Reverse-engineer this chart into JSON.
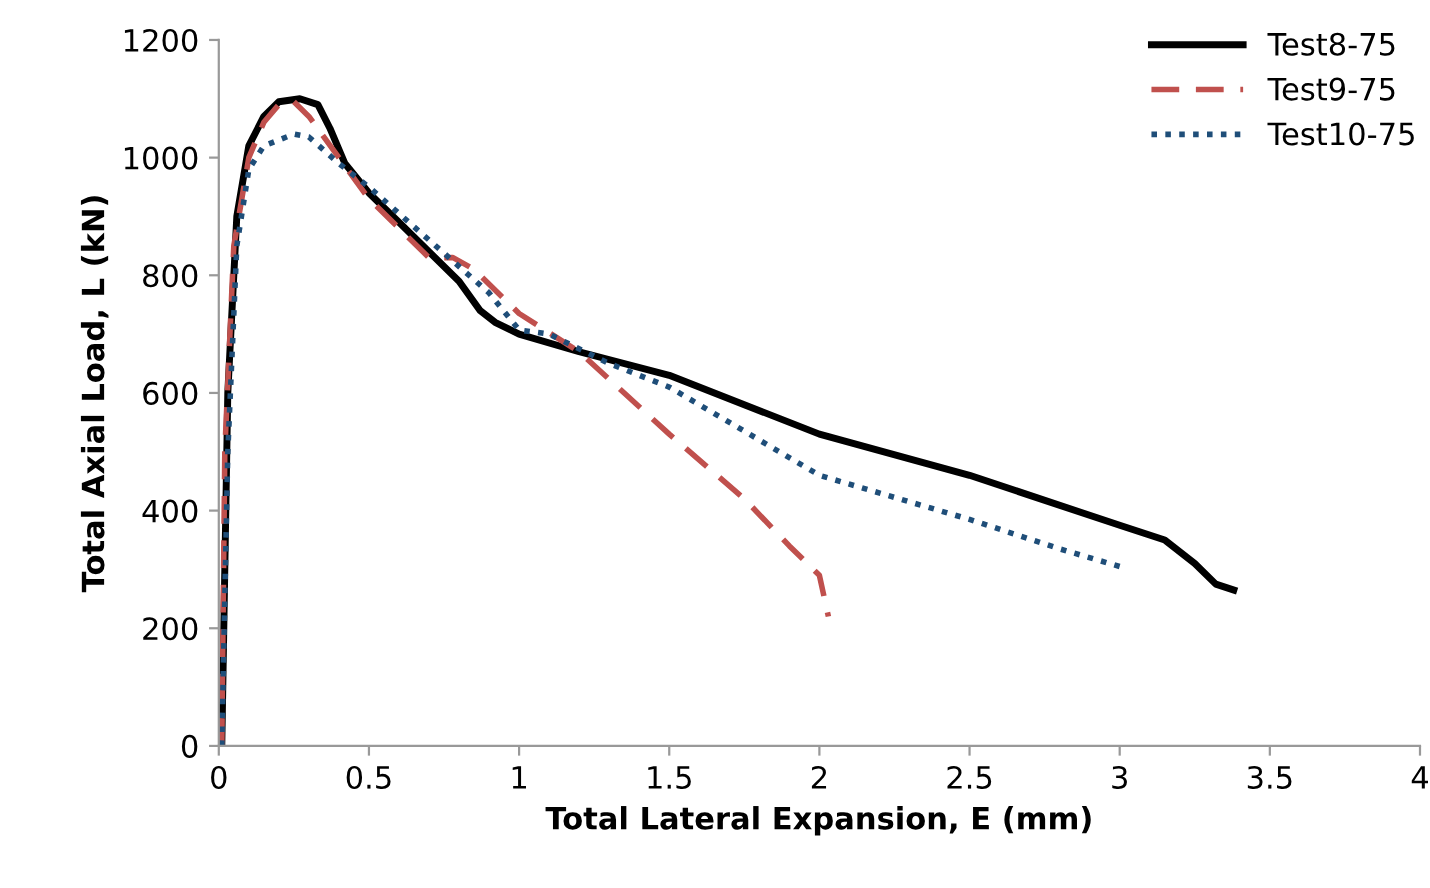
{
  "chart_data": {
    "type": "line",
    "xlabel": "Total Lateral Expansion, E (mm)",
    "ylabel": "Total Axial Load, L (kN)",
    "xlim": [
      0,
      4
    ],
    "xticks": [
      0,
      0.5,
      1,
      1.5,
      2,
      2.5,
      3,
      3.5,
      4
    ],
    "ylim": [
      0,
      1200
    ],
    "yticks": [
      0,
      200,
      400,
      600,
      800,
      1000,
      1200
    ],
    "grid": false,
    "legend": "top right",
    "marker": "none",
    "series": [
      {
        "name": "Test8-75",
        "color": "#000000",
        "line_style": "solid",
        "x": [
          0.01,
          0.03,
          0.06,
          0.1,
          0.15,
          0.2,
          0.27,
          0.33,
          0.37,
          0.42,
          0.5,
          0.6,
          0.7,
          0.8,
          0.87,
          0.92,
          1.0,
          1.2,
          1.5,
          2.0,
          2.5,
          3.0,
          3.15,
          3.25,
          3.32,
          3.38
        ],
        "values": [
          0,
          600,
          900,
          1020,
          1070,
          1095,
          1100,
          1090,
          1050,
          990,
          940,
          890,
          840,
          790,
          740,
          720,
          700,
          670,
          630,
          530,
          460,
          375,
          350,
          310,
          275,
          265
        ]
      },
      {
        "name": "Test9-75",
        "color": "#c0504d",
        "line_style": "dashed",
        "x": [
          0.01,
          0.02,
          0.05,
          0.1,
          0.15,
          0.2,
          0.25,
          0.3,
          0.4,
          0.5,
          0.6,
          0.7,
          0.78,
          0.85,
          1.0,
          1.2,
          1.5,
          1.75,
          1.9,
          2.0,
          2.03
        ],
        "values": [
          0,
          500,
          850,
          1000,
          1060,
          1090,
          1095,
          1070,
          1000,
          930,
          880,
          830,
          830,
          810,
          735,
          670,
          530,
          420,
          340,
          290,
          220
        ]
      },
      {
        "name": "Test10-75",
        "color": "#1f4e79",
        "line_style": "dotted",
        "x": [
          0.01,
          0.03,
          0.06,
          0.1,
          0.15,
          0.25,
          0.3,
          0.4,
          0.5,
          0.7,
          0.9,
          1.0,
          1.1,
          1.3,
          1.5,
          2.0,
          2.5,
          2.8,
          3.0
        ],
        "values": [
          0,
          500,
          850,
          980,
          1020,
          1040,
          1035,
          990,
          950,
          860,
          770,
          707,
          700,
          650,
          610,
          460,
          385,
          335,
          305
        ]
      }
    ]
  }
}
